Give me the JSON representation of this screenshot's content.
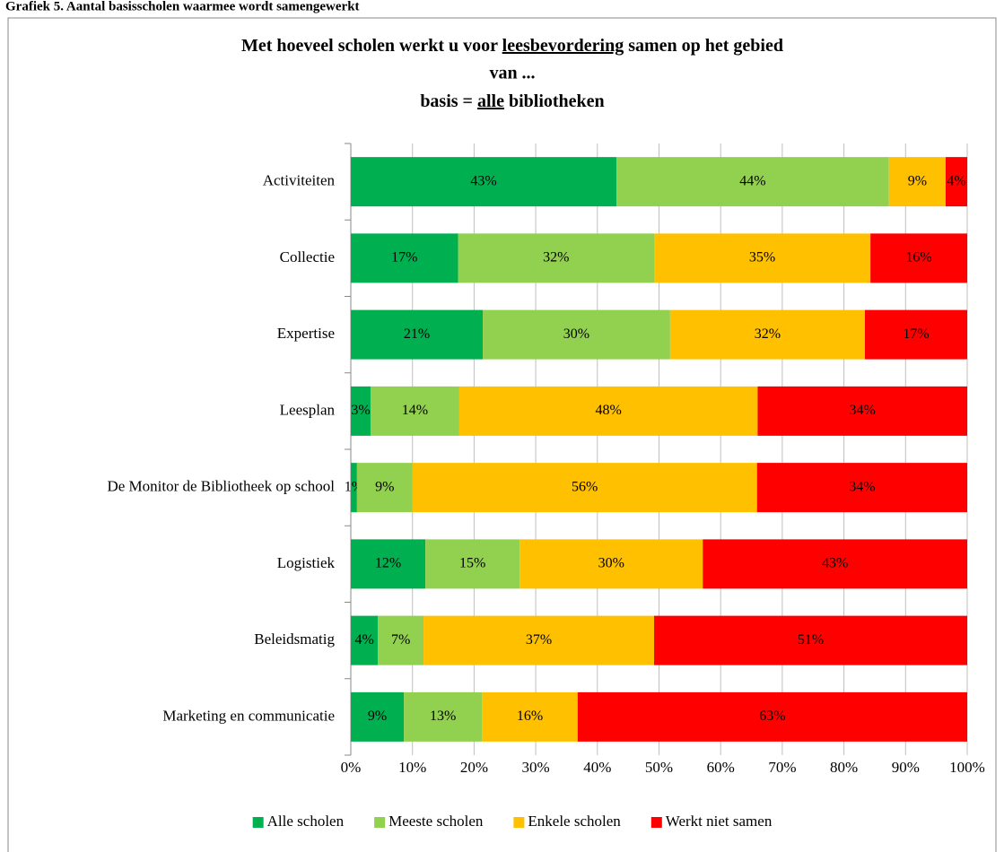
{
  "caption": "Grafiek 5. Aantal basisscholen waarmee wordt samengewerkt",
  "chart_data": {
    "type": "stacked-bar-horizontal",
    "title": [
      [
        "Met hoeveel scholen werkt u voor ",
        "leesbevordering",
        "  samen op het gebied"
      ],
      [
        "van ..."
      ],
      [
        "basis = ",
        "alle",
        " bibliotheken"
      ]
    ],
    "categories": [
      "Activiteiten",
      "Collectie",
      "Expertise",
      "Leesplan",
      "De Monitor de Bibliotheek op school",
      "Logistiek",
      "Beleidsmatig",
      "Marketing en communicatie"
    ],
    "series": [
      {
        "name": "Alle scholen",
        "color": "#00b050",
        "values": [
          43.1,
          17.4,
          21.4,
          3.2,
          1.0,
          12.1,
          4.4,
          8.6
        ],
        "value_labels": [
          "43%",
          "17%",
          "21%",
          "3%",
          "1%",
          "12%",
          "4%",
          "9%"
        ]
      },
      {
        "name": "Meeste scholen",
        "color": "#92d050",
        "values": [
          44.2,
          31.8,
          30.4,
          14.4,
          9.0,
          15.3,
          7.4,
          12.7
        ],
        "value_labels": [
          "44%",
          "32%",
          "30%",
          "14%",
          "9%",
          "15%",
          "7%",
          "13%"
        ]
      },
      {
        "name": "Enkele scholen",
        "color": "#ffc000",
        "values": [
          9.2,
          35.1,
          31.6,
          48.4,
          55.9,
          29.7,
          37.4,
          15.5
        ],
        "value_labels": [
          "9%",
          "35%",
          "32%",
          "48%",
          "56%",
          "30%",
          "37%",
          "16%"
        ]
      },
      {
        "name": "Werkt niet samen",
        "color": "#ff0000",
        "values": [
          3.5,
          15.7,
          16.6,
          34.0,
          34.1,
          42.9,
          50.8,
          63.2
        ],
        "value_labels": [
          "4%",
          "16%",
          "17%",
          "34%",
          "34%",
          "43%",
          "51%",
          "63%"
        ]
      }
    ],
    "xlim": [
      0,
      100
    ],
    "xticks": [
      {
        "value": 0,
        "label": "0%"
      },
      {
        "value": 10,
        "label": "10%"
      },
      {
        "value": 20,
        "label": "20%"
      },
      {
        "value": 30,
        "label": "30%"
      },
      {
        "value": 40,
        "label": "40%"
      },
      {
        "value": 50,
        "label": "50%"
      },
      {
        "value": 60,
        "label": "60%"
      },
      {
        "value": 70,
        "label": "70%"
      },
      {
        "value": 80,
        "label": "80%"
      },
      {
        "value": 90,
        "label": "90%"
      },
      {
        "value": 100,
        "label": "100%"
      }
    ],
    "grid": true,
    "legend": "bottom"
  }
}
